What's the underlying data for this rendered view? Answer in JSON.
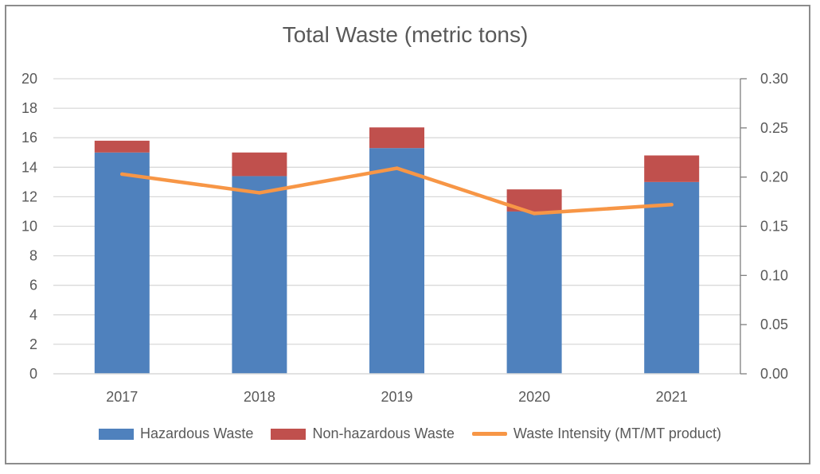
{
  "chart_data": {
    "type": "bar",
    "title": "Total Waste (metric tons)",
    "categories": [
      "2017",
      "2018",
      "2019",
      "2020",
      "2021"
    ],
    "series": [
      {
        "name": "Hazardous Waste",
        "kind": "stacked-bar",
        "axis": "left",
        "color": "#4f81bd",
        "values": [
          15.0,
          13.4,
          15.3,
          11.0,
          13.0
        ]
      },
      {
        "name": "Non-hazardous Waste",
        "kind": "stacked-bar",
        "axis": "left",
        "color": "#c0504d",
        "values": [
          0.8,
          1.6,
          1.4,
          1.5,
          1.8
        ]
      },
      {
        "name": "Waste Intensity (MT/MT product)",
        "kind": "line",
        "axis": "right",
        "color": "#f79646",
        "values": [
          0.203,
          0.184,
          0.209,
          0.163,
          0.172
        ]
      }
    ],
    "ylim": [
      0,
      20
    ],
    "y_ticks": [
      "0",
      "2",
      "4",
      "6",
      "8",
      "10",
      "12",
      "14",
      "16",
      "18",
      "20"
    ],
    "y2lim": [
      0,
      0.3
    ],
    "y2_ticks": [
      "0.00",
      "0.05",
      "0.10",
      "0.15",
      "0.20",
      "0.25",
      "0.30"
    ],
    "grid": true,
    "legend_position": "bottom"
  }
}
